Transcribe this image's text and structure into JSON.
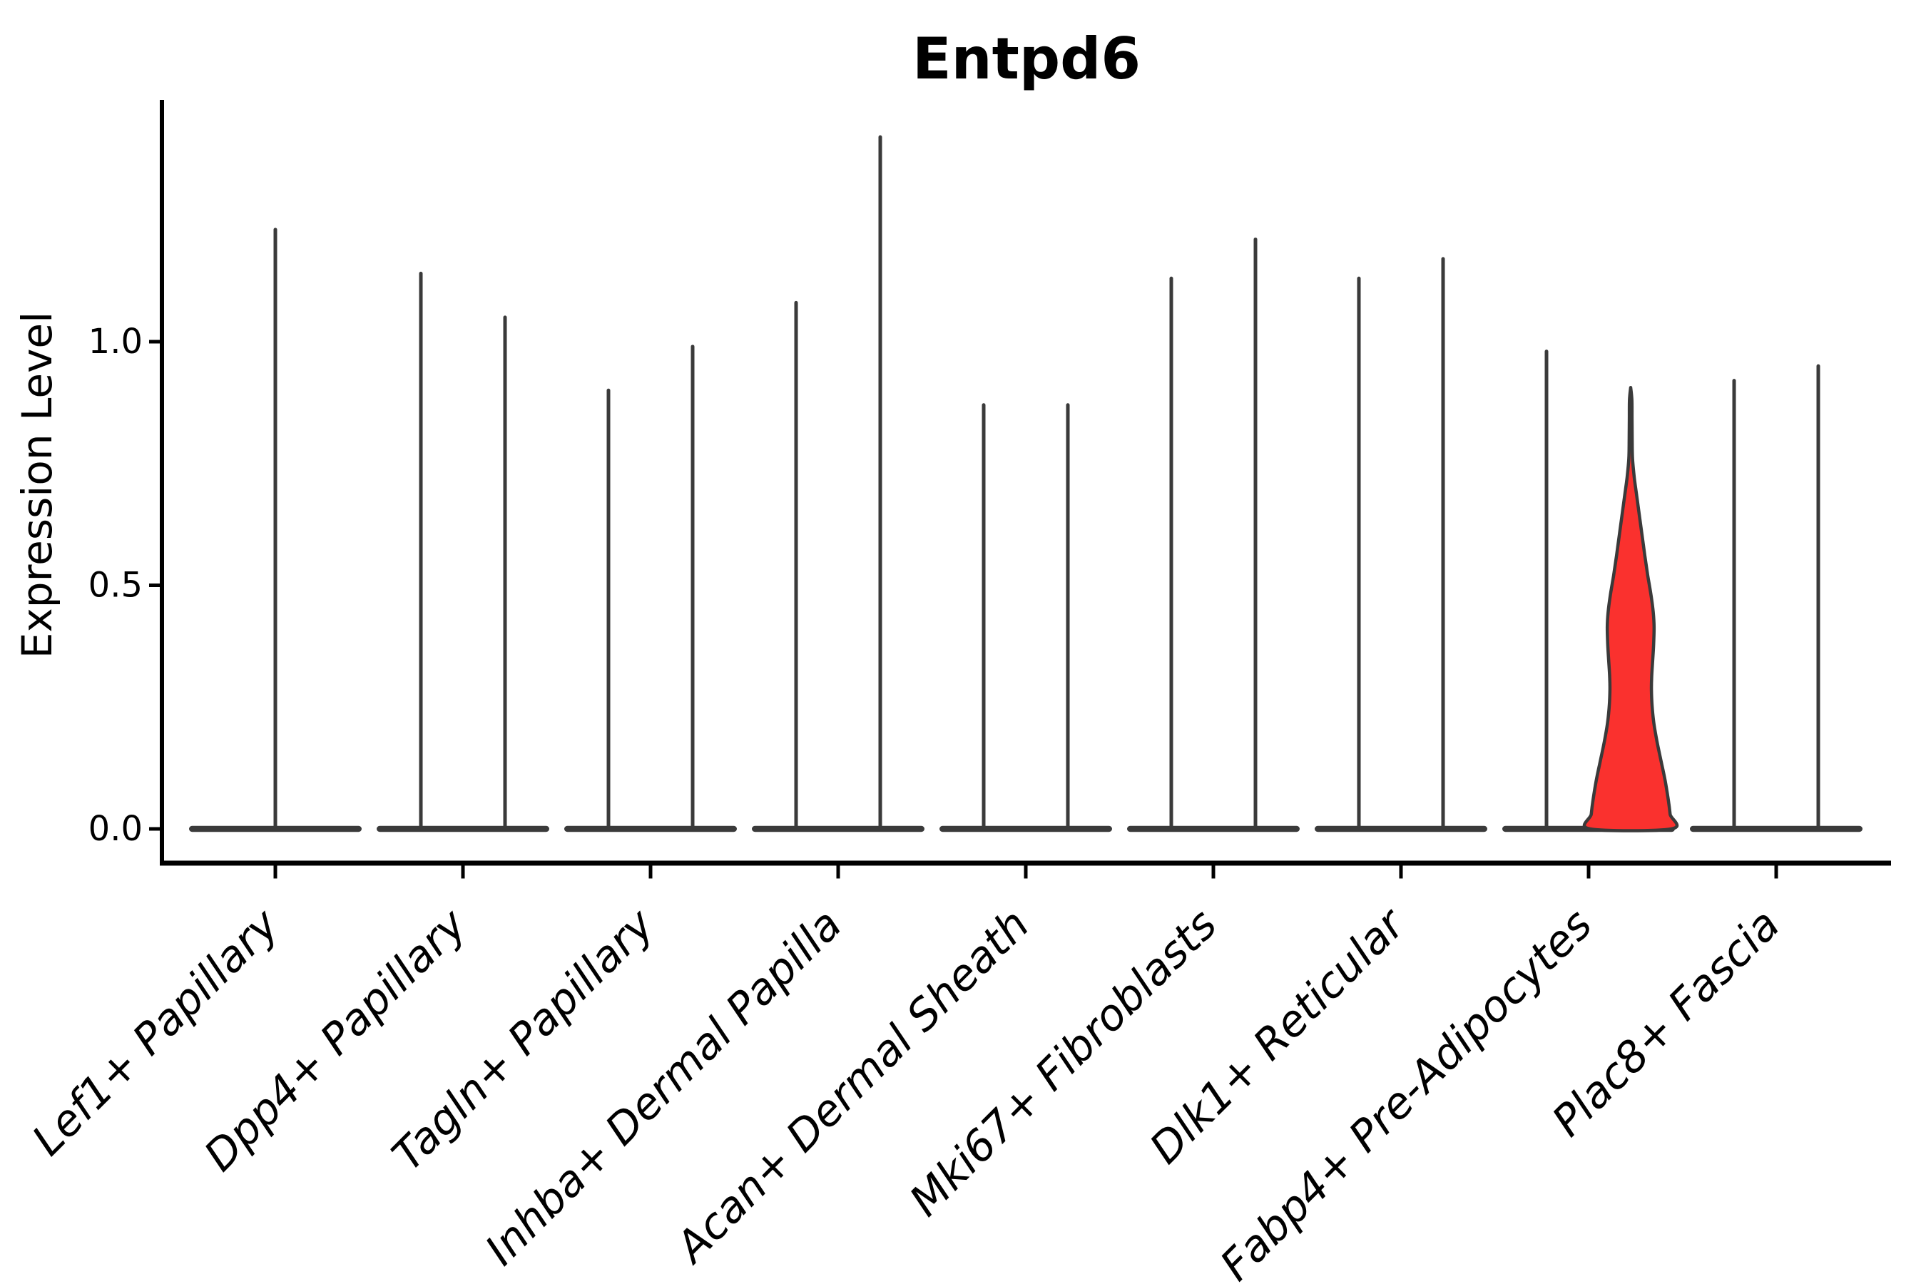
{
  "figure": {
    "background": "#ffffff"
  },
  "colors": {
    "violin_outline": "#3a3a3a",
    "highlight_fill": "#fa312e",
    "axis": "#000000",
    "text": "#000000",
    "background": "#ffffff"
  },
  "chart_data": {
    "type": "violin",
    "title": "Entpd6",
    "ylabel": "Expression Level",
    "xlabel": "",
    "grid": false,
    "legend_position": "none",
    "x_tick_rotation_deg": 45,
    "ylim": [
      -0.07,
      1.5
    ],
    "yticks": [
      {
        "value": 0.0,
        "label": "0.0"
      },
      {
        "value": 0.5,
        "label": "0.5"
      },
      {
        "value": 1.0,
        "label": "1.0"
      }
    ],
    "categories": [
      "Lef1+ Papillary",
      "Dpp4+ Papillary",
      "Tagln+ Papillary",
      "Inhba+ Dermal Papilla",
      "Acan+ Dermal Sheath",
      "Mki67+ Fibroblasts",
      "Dlk1+ Reticular",
      "Fabp4+ Pre-Adipocytes",
      "Plac8+ Fascia"
    ],
    "series": [
      {
        "category": "Lef1+ Papillary",
        "violins": [
          {
            "offset": "center",
            "max_expression": 1.23,
            "filled": false
          }
        ]
      },
      {
        "category": "Dpp4+ Papillary",
        "violins": [
          {
            "offset": "left",
            "max_expression": 1.14,
            "filled": false
          },
          {
            "offset": "right",
            "max_expression": 1.05,
            "filled": false
          }
        ]
      },
      {
        "category": "Tagln+ Papillary",
        "violins": [
          {
            "offset": "left",
            "max_expression": 0.9,
            "filled": false
          },
          {
            "offset": "right",
            "max_expression": 0.99,
            "filled": false
          }
        ]
      },
      {
        "category": "Inhba+ Dermal Papilla",
        "violins": [
          {
            "offset": "left",
            "max_expression": 1.08,
            "filled": false
          },
          {
            "offset": "right",
            "max_expression": 1.42,
            "filled": false
          }
        ]
      },
      {
        "category": "Acan+ Dermal Sheath",
        "violins": [
          {
            "offset": "left",
            "max_expression": 0.87,
            "filled": false
          },
          {
            "offset": "right",
            "max_expression": 0.87,
            "filled": false
          }
        ]
      },
      {
        "category": "Mki67+ Fibroblasts",
        "violins": [
          {
            "offset": "left",
            "max_expression": 1.13,
            "filled": false
          },
          {
            "offset": "right",
            "max_expression": 1.21,
            "filled": false
          }
        ]
      },
      {
        "category": "Dlk1+ Reticular",
        "violins": [
          {
            "offset": "left",
            "max_expression": 1.13,
            "filled": false
          },
          {
            "offset": "right",
            "max_expression": 1.17,
            "filled": false
          }
        ]
      },
      {
        "category": "Fabp4+ Pre-Adipocytes",
        "violins": [
          {
            "offset": "left",
            "max_expression": 0.98,
            "filled": false
          },
          {
            "offset": "right",
            "max_expression": 0.9,
            "filled": true,
            "fill_color": "#fa312e",
            "profile": [
              [
                0.906,
                0.0
              ],
              [
                0.88,
                0.03
              ],
              [
                0.84,
                0.033
              ],
              [
                0.8,
                0.037
              ],
              [
                0.76,
                0.045
              ],
              [
                0.72,
                0.09
              ],
              [
                0.68,
                0.155
              ],
              [
                0.64,
                0.22
              ],
              [
                0.6,
                0.285
              ],
              [
                0.56,
                0.35
              ],
              [
                0.52,
                0.42
              ],
              [
                0.48,
                0.5
              ],
              [
                0.445,
                0.555
              ],
              [
                0.415,
                0.575
              ],
              [
                0.38,
                0.565
              ],
              [
                0.345,
                0.54
              ],
              [
                0.31,
                0.515
              ],
              [
                0.285,
                0.51
              ],
              [
                0.255,
                0.525
              ],
              [
                0.22,
                0.565
              ],
              [
                0.18,
                0.645
              ],
              [
                0.14,
                0.745
              ],
              [
                0.1,
                0.845
              ],
              [
                0.06,
                0.925
              ],
              [
                0.03,
                0.97
              ],
              [
                0.0,
                1.0
              ]
            ]
          }
        ]
      },
      {
        "category": "Plac8+ Fascia",
        "violins": [
          {
            "offset": "left",
            "max_expression": 0.92,
            "filled": false
          },
          {
            "offset": "right",
            "max_expression": 0.95,
            "filled": false
          }
        ]
      }
    ]
  }
}
